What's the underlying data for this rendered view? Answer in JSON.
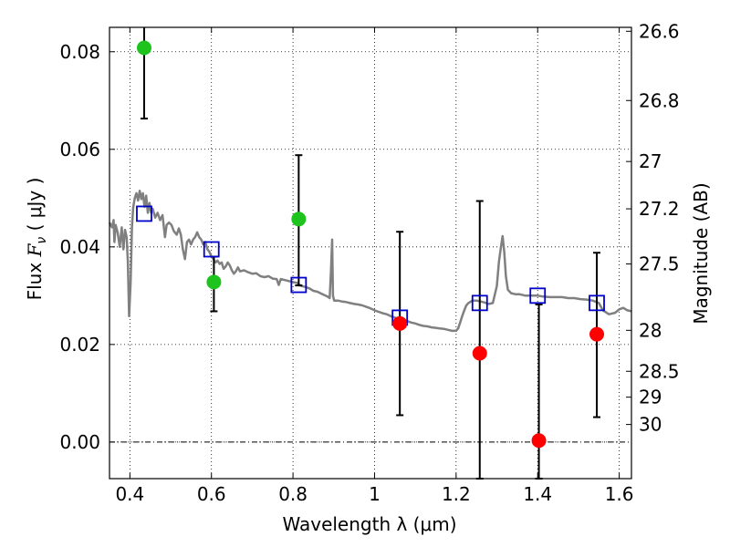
{
  "chart_data": {
    "type": "scatter",
    "xlabel": "Wavelength  λ (μm)",
    "ylabel": {
      "prefix": "Flux  ",
      "symbol": "F",
      "subscript": "ν",
      "unit": "  ( μJy )"
    },
    "y2label": "Magnitude (AB)",
    "xlim": [
      0.35,
      1.63
    ],
    "ylim": [
      -0.0075,
      0.085
    ],
    "grid": true,
    "x_ticks": [
      {
        "value": 0.4,
        "label": "0.4"
      },
      {
        "value": 0.6,
        "label": "0.6"
      },
      {
        "value": 0.8,
        "label": "0.8"
      },
      {
        "value": 1.0,
        "label": "1"
      },
      {
        "value": 1.2,
        "label": "1.2"
      },
      {
        "value": 1.4,
        "label": "1.4"
      },
      {
        "value": 1.6,
        "label": "1.6"
      }
    ],
    "y_ticks": [
      {
        "value": 0.0,
        "label": "0.00"
      },
      {
        "value": 0.02,
        "label": "0.02"
      },
      {
        "value": 0.04,
        "label": "0.04"
      },
      {
        "value": 0.06,
        "label": "0.06"
      },
      {
        "value": 0.08,
        "label": "0.08"
      }
    ],
    "y2_ticks": [
      {
        "flux": 0.0842,
        "label": "26.6"
      },
      {
        "flux": 0.07,
        "label": "26.8"
      },
      {
        "flux": 0.0575,
        "label": "27"
      },
      {
        "flux": 0.0478,
        "label": "27.2"
      },
      {
        "flux": 0.0365,
        "label": "27.5"
      },
      {
        "flux": 0.0229,
        "label": "28"
      },
      {
        "flux": 0.0145,
        "label": "28.5"
      },
      {
        "flux": 0.0092,
        "label": "29"
      },
      {
        "flux": 0.0036,
        "label": "30"
      }
    ],
    "series": [
      {
        "kind": "detection",
        "color": "#1ec31e",
        "points": [
          {
            "x": 0.435,
            "y": 0.0808,
            "err_low": 0.0663,
            "err_high": 0.0855
          },
          {
            "x": 0.606,
            "y": 0.0328,
            "err_low": 0.0268,
            "err_high": 0.038
          },
          {
            "x": 0.814,
            "y": 0.0457,
            "err_low": 0.0321,
            "err_high": 0.0588
          }
        ]
      },
      {
        "kind": "upper_limit",
        "color": "#ff0000",
        "points": [
          {
            "x": 1.062,
            "y": 0.0243,
            "err_low": 0.0055,
            "err_high": 0.0431
          },
          {
            "x": 1.258,
            "y": 0.0182,
            "err_low": -0.0075,
            "err_high": 0.0494
          },
          {
            "x": 1.403,
            "y": 0.0003,
            "err_low": -0.0075,
            "err_high": 0.0282
          },
          {
            "x": 1.545,
            "y": 0.0221,
            "err_low": 0.0051,
            "err_high": 0.0388
          }
        ]
      },
      {
        "kind": "model_band",
        "color": "#0000cc",
        "points": [
          {
            "x": 0.435,
            "y": 0.0468
          },
          {
            "x": 0.6,
            "y": 0.0395
          },
          {
            "x": 0.814,
            "y": 0.0322
          },
          {
            "x": 1.062,
            "y": 0.0255
          },
          {
            "x": 1.258,
            "y": 0.0285
          },
          {
            "x": 1.4,
            "y": 0.03
          },
          {
            "x": 1.545,
            "y": 0.0285
          }
        ]
      },
      {
        "kind": "template_spectrum",
        "color": "#808080",
        "points": [
          [
            0.35,
            0.045
          ],
          [
            0.356,
            0.044
          ],
          [
            0.36,
            0.0455
          ],
          [
            0.362,
            0.041
          ],
          [
            0.365,
            0.0445
          ],
          [
            0.37,
            0.043
          ],
          [
            0.375,
            0.04
          ],
          [
            0.38,
            0.044
          ],
          [
            0.384,
            0.0395
          ],
          [
            0.388,
            0.0435
          ],
          [
            0.392,
            0.042
          ],
          [
            0.395,
            0.037
          ],
          [
            0.398,
            0.0258
          ],
          [
            0.402,
            0.033
          ],
          [
            0.405,
            0.044
          ],
          [
            0.408,
            0.048
          ],
          [
            0.412,
            0.05
          ],
          [
            0.416,
            0.051
          ],
          [
            0.42,
            0.0495
          ],
          [
            0.424,
            0.0515
          ],
          [
            0.428,
            0.0498
          ],
          [
            0.432,
            0.051
          ],
          [
            0.436,
            0.0482
          ],
          [
            0.44,
            0.0505
          ],
          [
            0.444,
            0.047
          ],
          [
            0.448,
            0.049
          ],
          [
            0.452,
            0.047
          ],
          [
            0.456,
            0.0478
          ],
          [
            0.462,
            0.046
          ],
          [
            0.468,
            0.047
          ],
          [
            0.474,
            0.0455
          ],
          [
            0.48,
            0.0465
          ],
          [
            0.486,
            0.042
          ],
          [
            0.49,
            0.0445
          ],
          [
            0.496,
            0.045
          ],
          [
            0.502,
            0.0445
          ],
          [
            0.508,
            0.0432
          ],
          [
            0.515,
            0.0425
          ],
          [
            0.52,
            0.0438
          ],
          [
            0.525,
            0.0425
          ],
          [
            0.53,
            0.0395
          ],
          [
            0.535,
            0.0375
          ],
          [
            0.54,
            0.041
          ],
          [
            0.545,
            0.0415
          ],
          [
            0.55,
            0.0405
          ],
          [
            0.555,
            0.0415
          ],
          [
            0.56,
            0.042
          ],
          [
            0.565,
            0.043
          ],
          [
            0.57,
            0.042
          ],
          [
            0.575,
            0.0415
          ],
          [
            0.58,
            0.0405
          ],
          [
            0.585,
            0.041
          ],
          [
            0.59,
            0.0395
          ],
          [
            0.595,
            0.039
          ],
          [
            0.6,
            0.038
          ],
          [
            0.605,
            0.0375
          ],
          [
            0.61,
            0.0368
          ],
          [
            0.615,
            0.0372
          ],
          [
            0.62,
            0.0365
          ],
          [
            0.625,
            0.0368
          ],
          [
            0.63,
            0.0355
          ],
          [
            0.635,
            0.036
          ],
          [
            0.64,
            0.0368
          ],
          [
            0.645,
            0.0362
          ],
          [
            0.65,
            0.0352
          ],
          [
            0.655,
            0.0345
          ],
          [
            0.66,
            0.035
          ],
          [
            0.665,
            0.0358
          ],
          [
            0.67,
            0.035
          ],
          [
            0.68,
            0.0352
          ],
          [
            0.69,
            0.0348
          ],
          [
            0.7,
            0.0345
          ],
          [
            0.71,
            0.0346
          ],
          [
            0.72,
            0.034
          ],
          [
            0.73,
            0.0338
          ],
          [
            0.74,
            0.034
          ],
          [
            0.75,
            0.0335
          ],
          [
            0.76,
            0.0334
          ],
          [
            0.765,
            0.0322
          ],
          [
            0.77,
            0.0334
          ],
          [
            0.78,
            0.0332
          ],
          [
            0.79,
            0.033
          ],
          [
            0.8,
            0.0328
          ],
          [
            0.81,
            0.0326
          ],
          [
            0.82,
            0.032
          ],
          [
            0.83,
            0.0318
          ],
          [
            0.84,
            0.0315
          ],
          [
            0.85,
            0.031
          ],
          [
            0.86,
            0.0308
          ],
          [
            0.87,
            0.0304
          ],
          [
            0.88,
            0.03
          ],
          [
            0.885,
            0.0298
          ],
          [
            0.89,
            0.0295
          ],
          [
            0.893,
            0.035
          ],
          [
            0.896,
            0.0415
          ],
          [
            0.898,
            0.03
          ],
          [
            0.901,
            0.029
          ],
          [
            0.91,
            0.029
          ],
          [
            0.92,
            0.0288
          ],
          [
            0.93,
            0.0287
          ],
          [
            0.94,
            0.0285
          ],
          [
            0.95,
            0.0283
          ],
          [
            0.96,
            0.0282
          ],
          [
            0.97,
            0.028
          ],
          [
            0.98,
            0.0277
          ],
          [
            0.99,
            0.0274
          ],
          [
            1.0,
            0.027
          ],
          [
            1.01,
            0.0267
          ],
          [
            1.02,
            0.0264
          ],
          [
            1.03,
            0.0262
          ],
          [
            1.04,
            0.0258
          ],
          [
            1.05,
            0.0255
          ],
          [
            1.06,
            0.0252
          ],
          [
            1.07,
            0.025
          ],
          [
            1.08,
            0.0248
          ],
          [
            1.09,
            0.0245
          ],
          [
            1.1,
            0.0243
          ],
          [
            1.11,
            0.024
          ],
          [
            1.12,
            0.0238
          ],
          [
            1.13,
            0.0237
          ],
          [
            1.14,
            0.0235
          ],
          [
            1.15,
            0.0234
          ],
          [
            1.16,
            0.0233
          ],
          [
            1.17,
            0.0232
          ],
          [
            1.18,
            0.023
          ],
          [
            1.19,
            0.0228
          ],
          [
            1.2,
            0.0228
          ],
          [
            1.205,
            0.0233
          ],
          [
            1.21,
            0.0245
          ],
          [
            1.215,
            0.0258
          ],
          [
            1.22,
            0.027
          ],
          [
            1.225,
            0.028
          ],
          [
            1.23,
            0.0285
          ],
          [
            1.24,
            0.029
          ],
          [
            1.25,
            0.029
          ],
          [
            1.26,
            0.0288
          ],
          [
            1.27,
            0.0286
          ],
          [
            1.28,
            0.0283
          ],
          [
            1.29,
            0.0285
          ],
          [
            1.3,
            0.032
          ],
          [
            1.305,
            0.037
          ],
          [
            1.31,
            0.04
          ],
          [
            1.314,
            0.0422
          ],
          [
            1.318,
            0.039
          ],
          [
            1.322,
            0.034
          ],
          [
            1.327,
            0.0312
          ],
          [
            1.335,
            0.0305
          ],
          [
            1.345,
            0.0303
          ],
          [
            1.355,
            0.0303
          ],
          [
            1.37,
            0.03
          ],
          [
            1.385,
            0.03
          ],
          [
            1.4,
            0.03
          ],
          [
            1.415,
            0.0298
          ],
          [
            1.43,
            0.0297
          ],
          [
            1.445,
            0.0297
          ],
          [
            1.46,
            0.0297
          ],
          [
            1.475,
            0.0295
          ],
          [
            1.49,
            0.0295
          ],
          [
            1.505,
            0.0293
          ],
          [
            1.52,
            0.0292
          ],
          [
            1.535,
            0.029
          ],
          [
            1.55,
            0.0285
          ],
          [
            1.56,
            0.027
          ],
          [
            1.575,
            0.0262
          ],
          [
            1.59,
            0.0265
          ],
          [
            1.6,
            0.0272
          ],
          [
            1.61,
            0.0275
          ],
          [
            1.62,
            0.027
          ],
          [
            1.63,
            0.0268
          ]
        ]
      }
    ]
  }
}
